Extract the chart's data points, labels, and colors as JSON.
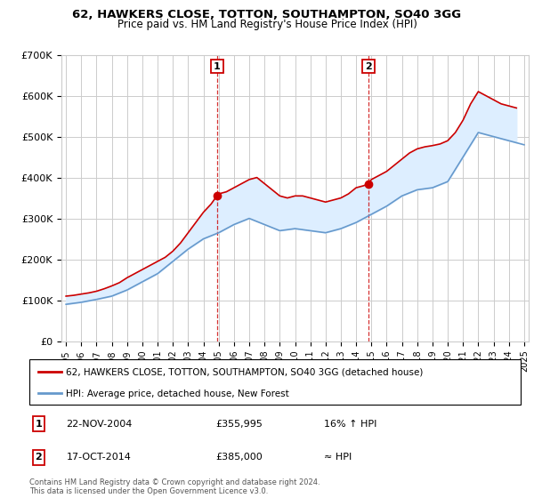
{
  "title": "62, HAWKERS CLOSE, TOTTON, SOUTHAMPTON, SO40 3GG",
  "subtitle": "Price paid vs. HM Land Registry's House Price Index (HPI)",
  "legend_line1": "62, HAWKERS CLOSE, TOTTON, SOUTHAMPTON, SO40 3GG (detached house)",
  "legend_line2": "HPI: Average price, detached house, New Forest",
  "annotation1_label": "1",
  "annotation1_date": "22-NOV-2004",
  "annotation1_price": "£355,995",
  "annotation1_hpi": "16% ↑ HPI",
  "annotation2_label": "2",
  "annotation2_date": "17-OCT-2014",
  "annotation2_price": "£385,000",
  "annotation2_hpi": "≈ HPI",
  "footer": "Contains HM Land Registry data © Crown copyright and database right 2024.\nThis data is licensed under the Open Government Licence v3.0.",
  "red_color": "#cc0000",
  "blue_color": "#6699cc",
  "shaded_color": "#ddeeff",
  "vline_color": "#cc0000",
  "grid_color": "#cccccc",
  "bg_color": "#ffffff",
  "ylim": [
    0,
    700000
  ],
  "yticks": [
    0,
    100000,
    200000,
    300000,
    400000,
    500000,
    600000,
    700000
  ],
  "ytick_labels": [
    "£0",
    "£100K",
    "£200K",
    "£300K",
    "£400K",
    "£500K",
    "£600K",
    "£700K"
  ],
  "year_start": 1995,
  "year_end": 2025,
  "sale1_year": 2004.9,
  "sale1_price": 355995,
  "sale2_year": 2014.8,
  "sale2_price": 385000,
  "hpi_years": [
    1995,
    1996,
    1997,
    1998,
    1999,
    2000,
    2001,
    2002,
    2003,
    2004,
    2005,
    2006,
    2007,
    2008,
    2009,
    2010,
    2011,
    2012,
    2013,
    2014,
    2015,
    2016,
    2017,
    2018,
    2019,
    2020,
    2021,
    2022,
    2023,
    2024,
    2025
  ],
  "hpi_values": [
    90000,
    95000,
    102000,
    110000,
    125000,
    145000,
    165000,
    195000,
    225000,
    250000,
    265000,
    285000,
    300000,
    285000,
    270000,
    275000,
    270000,
    265000,
    275000,
    290000,
    310000,
    330000,
    355000,
    370000,
    375000,
    390000,
    450000,
    510000,
    500000,
    490000,
    480000
  ],
  "price_years": [
    1995,
    1995.5,
    1996,
    1996.5,
    1997,
    1997.5,
    1998,
    1998.5,
    1999,
    1999.5,
    2000,
    2000.5,
    2001,
    2001.5,
    2002,
    2002.5,
    2003,
    2003.5,
    2004,
    2004.5,
    2004.9,
    2005,
    2005.5,
    2006,
    2006.5,
    2007,
    2007.5,
    2008,
    2008.5,
    2009,
    2009.5,
    2010,
    2010.5,
    2011,
    2011.5,
    2012,
    2012.5,
    2013,
    2013.5,
    2014,
    2014.5,
    2014.8,
    2015,
    2015.5,
    2016,
    2016.5,
    2017,
    2017.5,
    2018,
    2018.5,
    2019,
    2019.5,
    2020,
    2020.5,
    2021,
    2021.5,
    2022,
    2022.5,
    2023,
    2023.5,
    2024,
    2024.5
  ],
  "price_values": [
    110000,
    112000,
    115000,
    118000,
    122000,
    128000,
    135000,
    143000,
    155000,
    165000,
    175000,
    185000,
    195000,
    205000,
    220000,
    240000,
    265000,
    290000,
    315000,
    335000,
    355995,
    360000,
    365000,
    375000,
    385000,
    395000,
    400000,
    385000,
    370000,
    355000,
    350000,
    355000,
    355000,
    350000,
    345000,
    340000,
    345000,
    350000,
    360000,
    375000,
    380000,
    385000,
    395000,
    405000,
    415000,
    430000,
    445000,
    460000,
    470000,
    475000,
    478000,
    482000,
    490000,
    510000,
    540000,
    580000,
    610000,
    600000,
    590000,
    580000,
    575000,
    570000
  ]
}
